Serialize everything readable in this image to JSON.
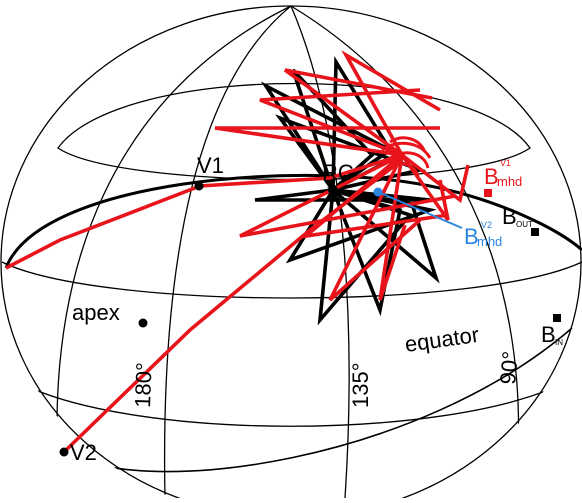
{
  "labels": {
    "v1": "V1",
    "v2": "V2",
    "rc": "RC",
    "apex": "apex",
    "equator": "equator",
    "lon_180": "180°",
    "lon_135": "135°",
    "lon_90": "90°",
    "b_mhd_v1": {
      "base": "B",
      "sub": "mhd",
      "sup": "V1"
    },
    "b_mhd_v2": {
      "base": "B",
      "sub": "mhd",
      "sup": "V2"
    },
    "b_out": {
      "base": "B",
      "sub": "OUT"
    },
    "b_in": {
      "base": "B",
      "sub": "IN"
    }
  },
  "colors": {
    "grid": "#000000",
    "red_curves": "#e8141b",
    "blue_marker": "#2a86e0",
    "black_curves": "#000000"
  }
}
